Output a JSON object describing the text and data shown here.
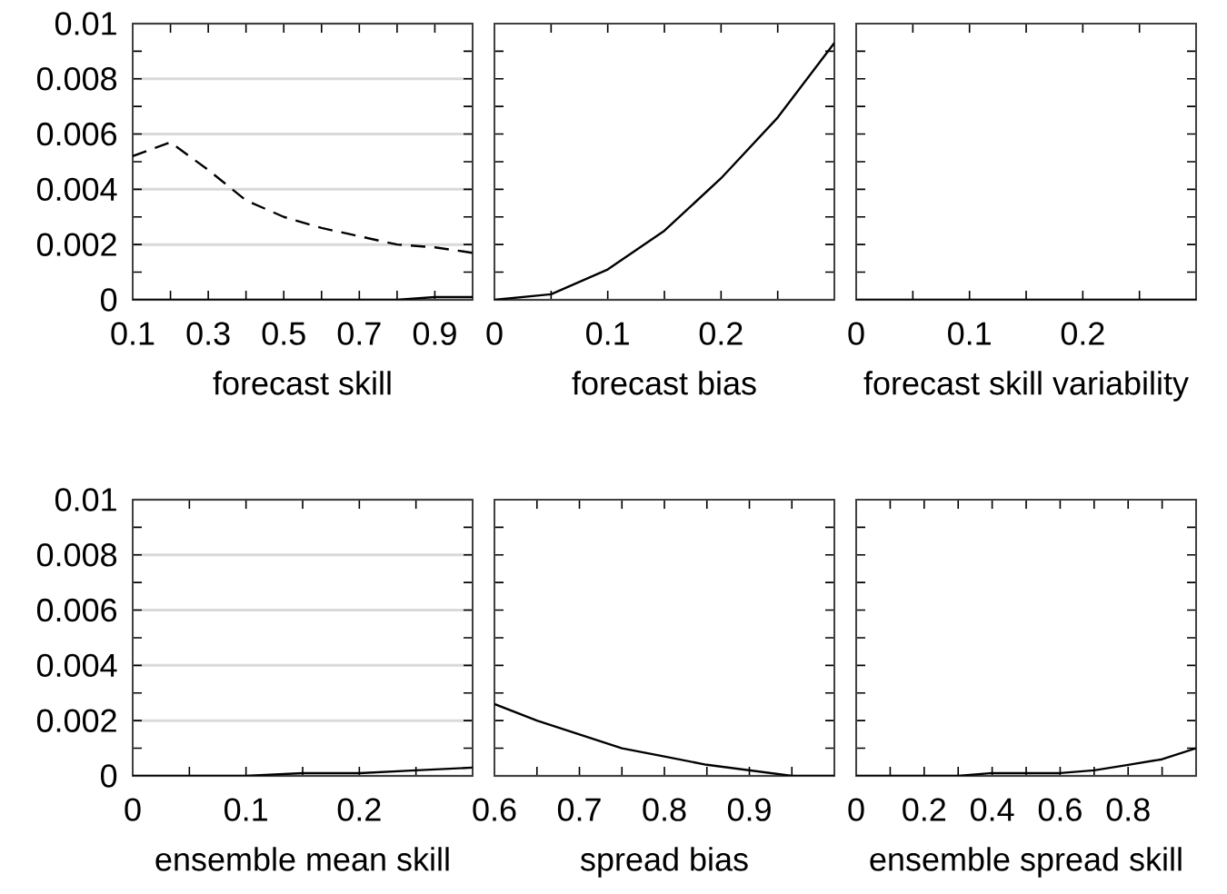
{
  "chart_data": [
    {
      "type": "line",
      "xlabel": "forecast skill",
      "x": [
        0.1,
        0.2,
        0.3,
        0.4,
        0.5,
        0.6,
        0.7,
        0.8,
        0.9,
        1.0
      ],
      "xlim": [
        0.1,
        1.0
      ],
      "xticks": [
        0.1,
        {
          "value": 0.2,
          "label": null
        },
        0.3,
        {
          "value": 0.4,
          "label": null
        },
        0.5,
        {
          "value": 0.6,
          "label": null
        },
        0.7,
        {
          "value": 0.8,
          "label": null
        },
        0.9,
        {
          "value": 1.0,
          "label": null
        }
      ],
      "ylim": [
        0,
        0.01
      ],
      "yticks": [
        0,
        {
          "value": 0.001,
          "label": null
        },
        0.002,
        {
          "value": 0.003,
          "label": null
        },
        0.004,
        {
          "value": 0.005,
          "label": null
        },
        0.006,
        {
          "value": 0.007,
          "label": null
        },
        0.008,
        {
          "value": 0.009,
          "label": null
        },
        0.01
      ],
      "grid": "y",
      "series": [
        {
          "color": "#000000",
          "line_style": "dashed",
          "values": [
            0.0052,
            0.0057,
            0.0047,
            0.0036,
            0.003,
            0.0026,
            0.0023,
            0.002,
            0.0019,
            0.0017
          ]
        },
        {
          "color": "#000000",
          "line_style": "solid",
          "values": [
            0,
            0,
            0,
            0,
            0,
            0,
            0,
            0,
            0.0001,
            0.0001
          ]
        }
      ]
    },
    {
      "type": "line",
      "xlabel": "forecast bias",
      "x": [
        0,
        0.05,
        0.1,
        0.15,
        0.2,
        0.25,
        0.3
      ],
      "xlim": [
        0,
        0.3
      ],
      "xticks": [
        0,
        {
          "value": 0.05,
          "label": null
        },
        0.1,
        {
          "value": 0.15,
          "label": null
        },
        0.2,
        {
          "value": 0.25,
          "label": null
        },
        {
          "value": 0.3,
          "label": null
        }
      ],
      "ylim": [
        0,
        0.01
      ],
      "yticks": [
        0,
        {
          "value": 0.001,
          "label": null
        },
        {
          "value": 0.002,
          "label": null
        },
        {
          "value": 0.003,
          "label": null
        },
        {
          "value": 0.004,
          "label": null
        },
        {
          "value": 0.005,
          "label": null
        },
        {
          "value": 0.006,
          "label": null
        },
        {
          "value": 0.007,
          "label": null
        },
        {
          "value": 0.008,
          "label": null
        },
        {
          "value": 0.009,
          "label": null
        },
        {
          "value": 0.01,
          "label": null
        }
      ],
      "grid": "y",
      "tick_labels": "x",
      "series": [
        {
          "color": "#000000",
          "line_style": "solid",
          "values": [
            0,
            0.0002,
            0.0011,
            0.0025,
            0.0044,
            0.0066,
            0.0093
          ]
        }
      ]
    },
    {
      "type": "line",
      "xlabel": "forecast skill variability",
      "x": [
        0,
        0.05,
        0.1,
        0.15,
        0.2,
        0.25,
        0.3
      ],
      "xlim": [
        0,
        0.3
      ],
      "xticks": [
        0,
        {
          "value": 0.05,
          "label": null
        },
        0.1,
        {
          "value": 0.15,
          "label": null
        },
        0.2,
        {
          "value": 0.25,
          "label": null
        },
        {
          "value": 0.3,
          "label": null
        }
      ],
      "ylim": [
        0,
        0.01
      ],
      "yticks": [
        0,
        {
          "value": 0.001,
          "label": null
        },
        {
          "value": 0.002,
          "label": null
        },
        {
          "value": 0.003,
          "label": null
        },
        {
          "value": 0.004,
          "label": null
        },
        {
          "value": 0.005,
          "label": null
        },
        {
          "value": 0.006,
          "label": null
        },
        {
          "value": 0.007,
          "label": null
        },
        {
          "value": 0.008,
          "label": null
        },
        {
          "value": 0.009,
          "label": null
        },
        {
          "value": 0.01,
          "label": null
        }
      ],
      "grid": "y",
      "tick_labels": "x",
      "series": [
        {
          "color": "#000000",
          "line_style": "solid",
          "values": [
            0,
            0,
            0,
            0,
            0,
            0,
            0
          ]
        }
      ]
    },
    {
      "type": "line",
      "xlabel": "ensemble mean skill",
      "x": [
        0,
        0.05,
        0.1,
        0.15,
        0.2,
        0.25,
        0.3
      ],
      "xlim": [
        0,
        0.3
      ],
      "xticks": [
        0,
        {
          "value": 0.05,
          "label": null
        },
        0.1,
        {
          "value": 0.15,
          "label": null
        },
        0.2,
        {
          "value": 0.25,
          "label": null
        },
        {
          "value": 0.3,
          "label": null
        }
      ],
      "ylim": [
        0,
        0.01
      ],
      "yticks": [
        0,
        {
          "value": 0.001,
          "label": null
        },
        0.002,
        {
          "value": 0.003,
          "label": null
        },
        0.004,
        {
          "value": 0.005,
          "label": null
        },
        0.006,
        {
          "value": 0.007,
          "label": null
        },
        0.008,
        {
          "value": 0.009,
          "label": null
        },
        0.01
      ],
      "grid": "y",
      "series": [
        {
          "color": "#000000",
          "line_style": "solid",
          "values": [
            0,
            0,
            0,
            0.0001,
            0.0001,
            0.0002,
            0.0003
          ]
        }
      ]
    },
    {
      "type": "line",
      "xlabel": "spread bias",
      "x": [
        0.6,
        0.65,
        0.7,
        0.75,
        0.8,
        0.85,
        0.9,
        0.95,
        1.0
      ],
      "xlim": [
        0.6,
        1.0
      ],
      "xticks": [
        0.6,
        {
          "value": 0.65,
          "label": null
        },
        0.7,
        {
          "value": 0.75,
          "label": null
        },
        0.8,
        {
          "value": 0.85,
          "label": null
        },
        0.9,
        {
          "value": 0.95,
          "label": null
        },
        {
          "value": 1.0,
          "label": null
        }
      ],
      "ylim": [
        0,
        0.01
      ],
      "yticks": [
        0,
        {
          "value": 0.001,
          "label": null
        },
        {
          "value": 0.002,
          "label": null
        },
        {
          "value": 0.003,
          "label": null
        },
        {
          "value": 0.004,
          "label": null
        },
        {
          "value": 0.005,
          "label": null
        },
        {
          "value": 0.006,
          "label": null
        },
        {
          "value": 0.007,
          "label": null
        },
        {
          "value": 0.008,
          "label": null
        },
        {
          "value": 0.009,
          "label": null
        },
        {
          "value": 0.01,
          "label": null
        }
      ],
      "grid": "y",
      "tick_labels": "x",
      "series": [
        {
          "color": "#000000",
          "line_style": "solid",
          "values": [
            0.0026,
            0.002,
            0.0015,
            0.001,
            0.0007,
            0.0004,
            0.0002,
            0,
            0
          ]
        }
      ]
    },
    {
      "type": "line",
      "xlabel": "ensemble spread skill",
      "x": [
        0,
        0.1,
        0.2,
        0.3,
        0.4,
        0.5,
        0.6,
        0.7,
        0.8,
        0.9,
        1.0
      ],
      "xlim": [
        0,
        1.0
      ],
      "xticks": [
        0,
        {
          "value": 0.1,
          "label": null
        },
        0.2,
        {
          "value": 0.3,
          "label": null
        },
        0.4,
        {
          "value": 0.5,
          "label": null
        },
        0.6,
        {
          "value": 0.7,
          "label": null
        },
        0.8,
        {
          "value": 0.9,
          "label": null
        },
        {
          "value": 1.0,
          "label": null
        }
      ],
      "ylim": [
        0,
        0.01
      ],
      "yticks": [
        0,
        {
          "value": 0.001,
          "label": null
        },
        {
          "value": 0.002,
          "label": null
        },
        {
          "value": 0.003,
          "label": null
        },
        {
          "value": 0.004,
          "label": null
        },
        {
          "value": 0.005,
          "label": null
        },
        {
          "value": 0.006,
          "label": null
        },
        {
          "value": 0.007,
          "label": null
        },
        {
          "value": 0.008,
          "label": null
        },
        {
          "value": 0.009,
          "label": null
        },
        {
          "value": 0.01,
          "label": null
        }
      ],
      "grid": "y",
      "tick_labels": "x",
      "series": [
        {
          "color": "#000000",
          "line_style": "solid",
          "values": [
            0,
            0,
            0,
            0,
            0.0001,
            0.0001,
            0.0001,
            0.0002,
            0.0004,
            0.0006,
            0.001
          ]
        }
      ]
    }
  ]
}
